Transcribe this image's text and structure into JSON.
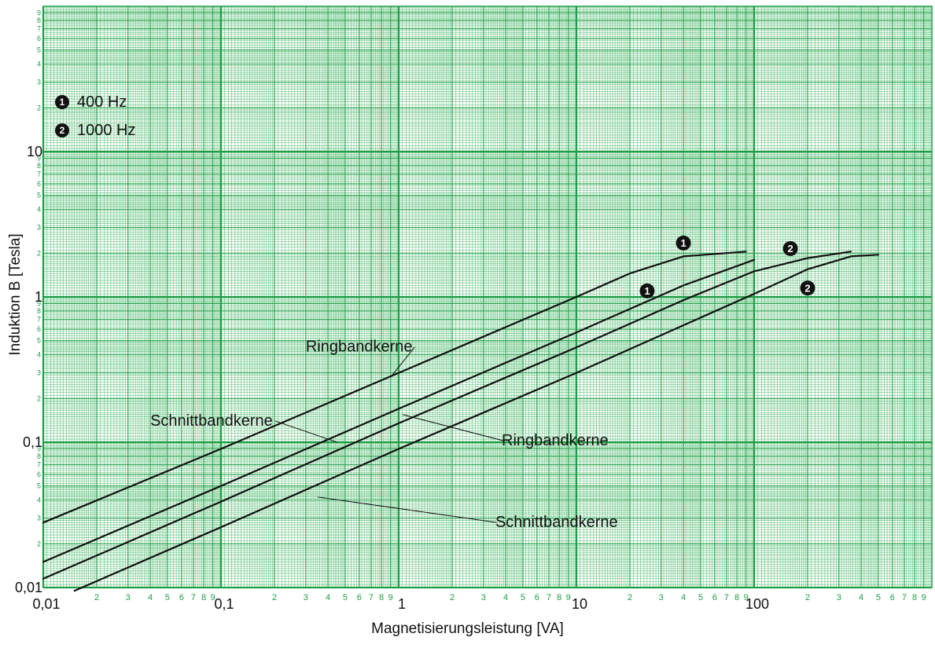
{
  "chart_data": {
    "type": "line",
    "title": "",
    "xlabel": "Magnetisierungsleistung [VA]",
    "ylabel": "Induktion B [Tesla]",
    "x_scale": "log",
    "y_scale": "log",
    "xlim": [
      0.01,
      1000
    ],
    "ylim": [
      0.01,
      100
    ],
    "x_ticks": [
      "0,01",
      "0,1",
      "1",
      "10",
      "100"
    ],
    "y_ticks": [
      "0,01",
      "0,1",
      "1",
      "10"
    ],
    "grid": true,
    "legend": [
      {
        "marker": "1",
        "label": "400 Hz"
      },
      {
        "marker": "2",
        "label": "1000 Hz"
      }
    ],
    "series": [
      {
        "name": "Ringbandkerne",
        "frequency_marker": "1",
        "points": [
          [
            0.01,
            0.028
          ],
          [
            0.1,
            0.09
          ],
          [
            1,
            0.3
          ],
          [
            10,
            1.0
          ],
          [
            20,
            1.45
          ],
          [
            40,
            1.9
          ],
          [
            90,
            2.05
          ]
        ]
      },
      {
        "name": "Schnittbandkerne",
        "frequency_marker": "1",
        "points": [
          [
            0.01,
            0.015
          ],
          [
            0.1,
            0.05
          ],
          [
            1,
            0.17
          ],
          [
            10,
            0.57
          ],
          [
            40,
            1.2
          ],
          [
            100,
            1.8
          ]
        ]
      },
      {
        "name": "Ringbandkerne",
        "frequency_marker": "2",
        "points": [
          [
            0.01,
            0.0115
          ],
          [
            0.1,
            0.039
          ],
          [
            1,
            0.135
          ],
          [
            10,
            0.45
          ],
          [
            40,
            0.95
          ],
          [
            100,
            1.5
          ],
          [
            200,
            1.85
          ],
          [
            350,
            2.05
          ]
        ]
      },
      {
        "name": "Schnittbandkerne",
        "frequency_marker": "2",
        "points": [
          [
            0.015,
            0.0095
          ],
          [
            0.1,
            0.026
          ],
          [
            1,
            0.09
          ],
          [
            10,
            0.3
          ],
          [
            100,
            1.05
          ],
          [
            200,
            1.55
          ],
          [
            350,
            1.9
          ],
          [
            500,
            1.95
          ]
        ]
      }
    ],
    "annotations": [
      {
        "text": "Ringbandkerne",
        "x": 0.3,
        "y": 0.42,
        "target": {
          "x": 0.9,
          "y": 0.28
        }
      },
      {
        "text": "Schnittbandkerne",
        "x": 0.04,
        "y": 0.13,
        "target": {
          "x": 0.45,
          "y": 0.1
        }
      },
      {
        "text": "Ringbandkerne",
        "x": 3.8,
        "y": 0.095,
        "target": {
          "x": 1.05,
          "y": 0.155
        }
      },
      {
        "text": "Schnittbandkerne",
        "x": 3.5,
        "y": 0.026,
        "target": {
          "x": 0.35,
          "y": 0.042
        }
      },
      {
        "text": "1",
        "marker": true,
        "x": 40,
        "y": 2.35
      },
      {
        "text": "1",
        "marker": true,
        "x": 25,
        "y": 1.1
      },
      {
        "text": "2",
        "marker": true,
        "x": 160,
        "y": 2.15
      },
      {
        "text": "2",
        "marker": true,
        "x": 200,
        "y": 1.15
      }
    ]
  }
}
